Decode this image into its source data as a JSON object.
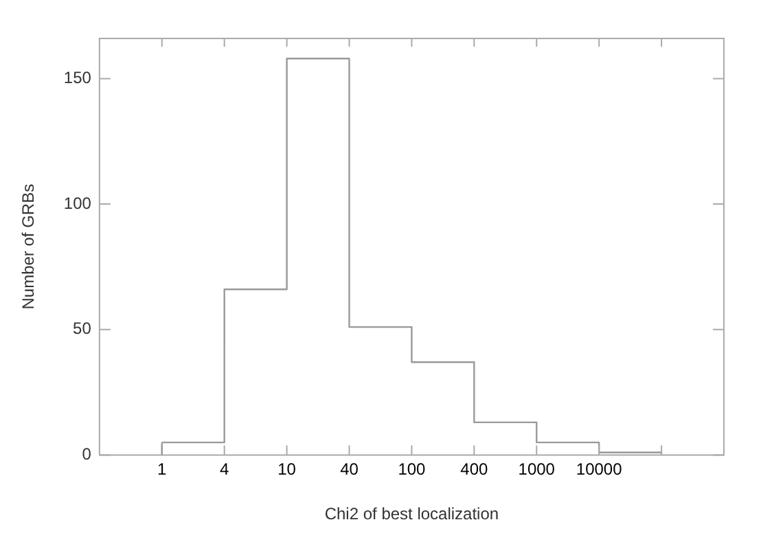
{
  "chart_data": {
    "type": "step",
    "xlabel": "Chi2 of best localization",
    "ylabel": "Number of GRBs",
    "categories": [
      "1",
      "4",
      "10",
      "40",
      "100",
      "400",
      "1000",
      "10000",
      null
    ],
    "values": [
      5,
      66,
      158,
      51,
      37,
      13,
      5,
      1,
      0
    ],
    "color": "#999999",
    "ylim": [
      0,
      166
    ],
    "yticks": [
      0,
      50,
      100,
      150
    ],
    "grid": false,
    "legend": false
  }
}
